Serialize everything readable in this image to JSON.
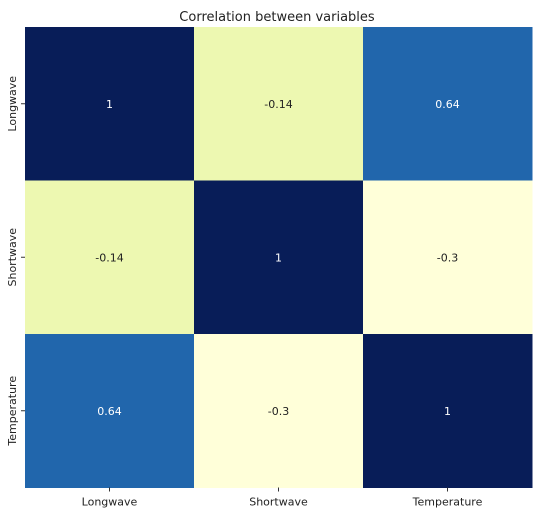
{
  "chart_data": {
    "type": "heatmap",
    "title": "Correlation between variables",
    "x_categories": [
      "Longwave",
      "Shortwave",
      "Temperature"
    ],
    "y_categories": [
      "Longwave",
      "Shortwave",
      "Temperature"
    ],
    "matrix": [
      [
        1,
        -0.14,
        0.64
      ],
      [
        -0.14,
        1,
        -0.3
      ],
      [
        0.64,
        -0.3,
        1
      ]
    ],
    "value_labels": [
      [
        "1",
        "-0.14",
        "0.64"
      ],
      [
        "-0.14",
        "1",
        "-0.3"
      ],
      [
        "0.64",
        "-0.3",
        "1"
      ]
    ],
    "colorbar": false,
    "grid": false,
    "colors": {
      "max": "#081d58",
      "high_mid": "#2166ac",
      "low_mid": "#edf8b1",
      "min": "#ffffd9",
      "dark_text": "#ffffff",
      "light_text": "#222222"
    }
  }
}
